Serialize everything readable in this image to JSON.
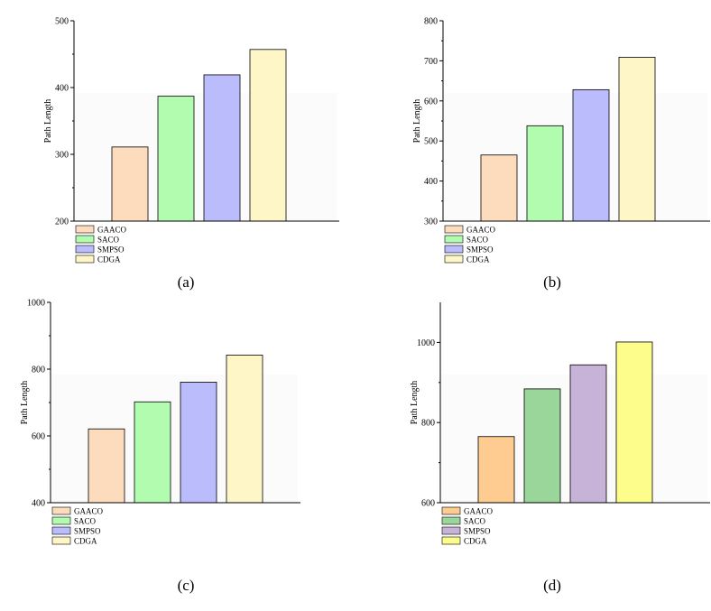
{
  "chart_data": [
    {
      "type": "bar",
      "caption": "(a)",
      "ylabel": "Path Length",
      "ylim": [
        200,
        500
      ],
      "yticks": [
        200,
        300,
        400,
        500
      ],
      "series": [
        {
          "name": "GAACO",
          "value": 311,
          "color": "#fddcbd"
        },
        {
          "name": "SACO",
          "value": 387,
          "color": "#b2fcb0"
        },
        {
          "name": "SMPSO",
          "value": 419,
          "color": "#babcfb"
        },
        {
          "name": "CDGA",
          "value": 457,
          "color": "#fef6c6"
        }
      ],
      "legend": "bottom-left"
    },
    {
      "type": "bar",
      "caption": "(b)",
      "ylabel": "Path Length",
      "ylim": [
        300,
        800
      ],
      "yticks": [
        300,
        400,
        500,
        600,
        700,
        800
      ],
      "series": [
        {
          "name": "GAACO",
          "value": 465,
          "color": "#fddcbd"
        },
        {
          "name": "SACO",
          "value": 538,
          "color": "#b2fcb0"
        },
        {
          "name": "SMPSO",
          "value": 628,
          "color": "#babcfb"
        },
        {
          "name": "CDGA",
          "value": 709,
          "color": "#fef6c6"
        }
      ],
      "legend": "bottom-left"
    },
    {
      "type": "bar",
      "caption": "(c)",
      "ylabel": "Path Length",
      "ylim": [
        400,
        1000
      ],
      "yticks": [
        400,
        600,
        800,
        1000
      ],
      "series": [
        {
          "name": "GAACO",
          "value": 621,
          "color": "#fddcbd"
        },
        {
          "name": "SACO",
          "value": 702,
          "color": "#b2fcb0"
        },
        {
          "name": "SMPSO",
          "value": 761,
          "color": "#babcfb"
        },
        {
          "name": "CDGA",
          "value": 842,
          "color": "#fef6c6"
        }
      ],
      "legend": "bottom-left"
    },
    {
      "type": "bar",
      "caption": "(d)",
      "ylabel": "Path Length",
      "ylim": [
        600,
        1100
      ],
      "yticks": [
        600,
        800,
        1000
      ],
      "series": [
        {
          "name": "GAACO",
          "value": 765,
          "color": "#fecb91"
        },
        {
          "name": "SACO",
          "value": 884,
          "color": "#9ad59a"
        },
        {
          "name": "SMPSO",
          "value": 944,
          "color": "#c7b3d8"
        },
        {
          "name": "CDGA",
          "value": 1001,
          "color": "#fdfd8c"
        }
      ],
      "legend": "bottom-left"
    }
  ]
}
